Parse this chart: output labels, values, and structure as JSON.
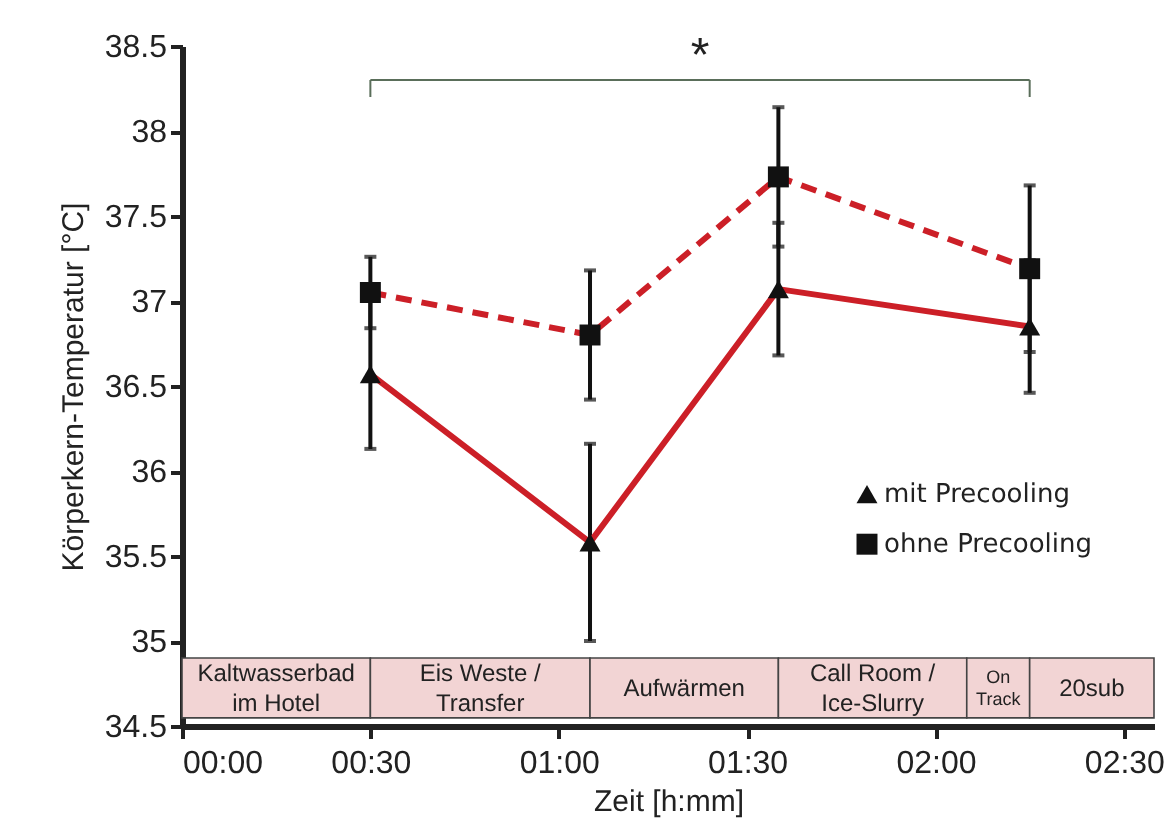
{
  "chart_data": {
    "type": "line",
    "xlabel": "Zeit [h:mm]",
    "ylabel": "Körperkern-Temperatur [°C]",
    "x": [
      0.5,
      1.083,
      1.583,
      2.25
    ],
    "xlim": [
      0,
      2.58
    ],
    "xticks": [
      {
        "value": 0,
        "label": "00:00"
      },
      {
        "value": 0.5,
        "label": "00:30"
      },
      {
        "value": 1,
        "label": "01:00"
      },
      {
        "value": 1.5,
        "label": "01:30"
      },
      {
        "value": 2,
        "label": "02:00"
      },
      {
        "value": 2.5,
        "label": "02:30"
      }
    ],
    "ylim": [
      34.5,
      38.5
    ],
    "yticks": [
      34.5,
      35,
      35.5,
      36,
      36.5,
      37,
      37.5,
      38,
      38.5
    ],
    "series": [
      {
        "name": "mit Precooling",
        "color": "#cc1f27",
        "marker": "triangle",
        "line_style": "solid",
        "values": [
          36.57,
          35.58,
          37.07,
          36.85
        ],
        "errors": [
          0.44,
          0.58,
          0.39,
          0.39
        ]
      },
      {
        "name": "ohne Precooling",
        "color": "#cc1f27",
        "marker": "square",
        "line_style": "dashed",
        "values": [
          37.05,
          36.8,
          37.73,
          37.19
        ],
        "errors": [
          0.21,
          0.38,
          0.41,
          0.49
        ]
      }
    ],
    "bands": [
      {
        "axis": "x",
        "from": 0,
        "to": 0.5,
        "label": "Kaltwasserbad\nim Hotel",
        "color": "#f2d4d4"
      },
      {
        "axis": "x",
        "from": 0.5,
        "to": 1.083,
        "label": "Eis Weste /\nTransfer",
        "color": "#f2d4d4"
      },
      {
        "axis": "x",
        "from": 1.083,
        "to": 1.583,
        "label": "Aufwärmen",
        "color": "#f2d4d4"
      },
      {
        "axis": "x",
        "from": 1.583,
        "to": 2.083,
        "label": "Call Room /\nIce-Slurry",
        "color": "#f2d4d4"
      },
      {
        "axis": "x",
        "from": 2.083,
        "to": 2.25,
        "label": "On\nTrack",
        "color": "#f2d4d4"
      },
      {
        "axis": "x",
        "from": 2.25,
        "to": 2.58,
        "label": "20sub",
        "color": "#f2d4d4"
      }
    ],
    "annotations": [
      "*"
    ],
    "legend": "right",
    "grid": false
  }
}
